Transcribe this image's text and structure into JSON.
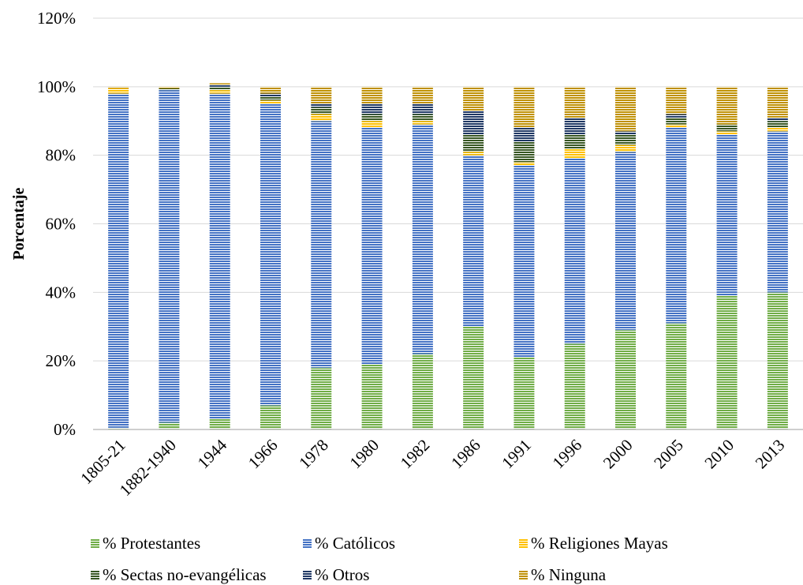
{
  "chart_data": {
    "type": "bar",
    "stacked": true,
    "title": "",
    "xlabel": "",
    "ylabel": "Porcentaje",
    "ylim": [
      0,
      120
    ],
    "yticks": [
      "0%",
      "20%",
      "40%",
      "60%",
      "80%",
      "100%",
      "120%"
    ],
    "grid": true,
    "legend_position": "bottom",
    "categories": [
      "1805-21",
      "1882-1940",
      "1944",
      "1966",
      "1978",
      "1980",
      "1982",
      "1986",
      "1991",
      "1996",
      "2000",
      "2005",
      "2010",
      "2013"
    ],
    "series": [
      {
        "name": "% Protestantes",
        "color": "#70ad47",
        "values": [
          0.5,
          2,
          3,
          7,
          18,
          19,
          22,
          30,
          21,
          25,
          29,
          31,
          39,
          40
        ]
      },
      {
        "name": "% Católicos",
        "color": "#4472c4",
        "values": [
          97.5,
          97,
          95,
          88,
          72,
          69,
          67,
          50,
          56,
          54,
          52,
          57,
          47,
          47
        ]
      },
      {
        "name": "% Religiones Mayas",
        "color": "#ffc000",
        "values": [
          1.5,
          0,
          1,
          1,
          2,
          2,
          1,
          1,
          1,
          3,
          2,
          1,
          1,
          1
        ]
      },
      {
        "name": "% Sectas no-evangélicas",
        "color": "#375623",
        "values": [
          0,
          0.5,
          1,
          1,
          2,
          2,
          2,
          5,
          6,
          4,
          3,
          2,
          2,
          2
        ]
      },
      {
        "name": "% Otros",
        "color": "#1f3864",
        "values": [
          0,
          0,
          0.5,
          1,
          1,
          3,
          3,
          7,
          4,
          5,
          1,
          1,
          0,
          1
        ]
      },
      {
        "name": "% Ninguna",
        "color": "#bf9000",
        "values": [
          0.5,
          0.5,
          0.5,
          2,
          5,
          5,
          5,
          7,
          12,
          9,
          13,
          8,
          11,
          9
        ]
      }
    ]
  }
}
